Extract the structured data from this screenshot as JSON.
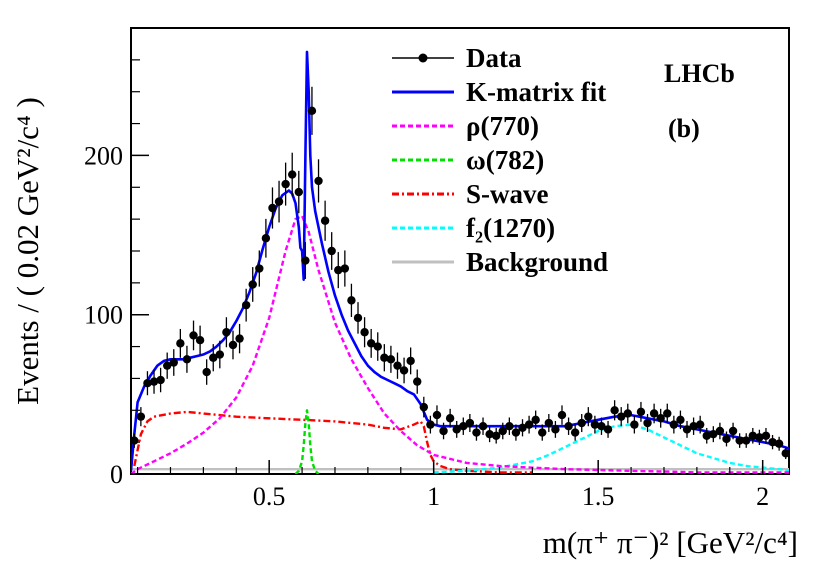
{
  "chart_data": {
    "type": "line",
    "xlabel": "m(π⁺ π⁻)² [GeV²/c⁴]",
    "ylabel": "Events / ( 0.02 GeV²/c⁴ )",
    "xlim": [
      0.08,
      2.08
    ],
    "ylim": [
      0,
      280
    ],
    "x_ticks": [
      0.5,
      1,
      1.5,
      2
    ],
    "x_tick_labels": [
      "0.5",
      "1",
      "1.5",
      "2"
    ],
    "y_ticks": [
      0,
      100,
      200
    ],
    "y_tick_labels": [
      "0",
      "100",
      "200"
    ],
    "annotations": [
      "LHCb",
      "(b)"
    ],
    "legend_position": "top-right",
    "legend": [
      {
        "label": "Data",
        "color": "#000000",
        "style": "marker-line"
      },
      {
        "label": "K-matrix fit",
        "color": "#0000ff",
        "style": "solid"
      },
      {
        "label": "ρ(770)",
        "color": "#ff00ff",
        "style": "dashed"
      },
      {
        "label": "ω(782)",
        "color": "#00e000",
        "style": "dashed"
      },
      {
        "label": "S-wave",
        "color": "#ff0000",
        "style": "dashdot"
      },
      {
        "label": "f₂(1270)",
        "color": "#00ffff",
        "style": "dashed"
      },
      {
        "label": "Background",
        "color": "#c0c0c0",
        "style": "solid"
      }
    ],
    "series": [
      {
        "name": "Data",
        "type": "points",
        "color": "#000000",
        "x": [
          0.09,
          0.11,
          0.13,
          0.15,
          0.17,
          0.19,
          0.21,
          0.23,
          0.25,
          0.27,
          0.29,
          0.31,
          0.33,
          0.35,
          0.37,
          0.39,
          0.41,
          0.43,
          0.45,
          0.47,
          0.49,
          0.51,
          0.53,
          0.55,
          0.57,
          0.59,
          0.61,
          0.63,
          0.65,
          0.67,
          0.69,
          0.71,
          0.73,
          0.75,
          0.77,
          0.79,
          0.81,
          0.83,
          0.85,
          0.87,
          0.89,
          0.91,
          0.93,
          0.95,
          0.97,
          0.99,
          1.01,
          1.03,
          1.05,
          1.07,
          1.09,
          1.11,
          1.13,
          1.15,
          1.17,
          1.19,
          1.21,
          1.23,
          1.25,
          1.27,
          1.29,
          1.31,
          1.33,
          1.35,
          1.37,
          1.39,
          1.41,
          1.43,
          1.45,
          1.47,
          1.49,
          1.51,
          1.53,
          1.55,
          1.57,
          1.59,
          1.61,
          1.63,
          1.65,
          1.67,
          1.69,
          1.71,
          1.73,
          1.75,
          1.77,
          1.79,
          1.81,
          1.83,
          1.85,
          1.87,
          1.89,
          1.91,
          1.93,
          1.95,
          1.97,
          1.99,
          2.01,
          2.03,
          2.05,
          2.07
        ],
        "y": [
          21,
          36,
          57,
          58,
          59,
          68,
          70,
          82,
          72,
          87,
          84,
          64,
          73,
          75,
          89,
          81,
          85,
          106,
          119,
          129,
          148,
          167,
          171,
          182,
          188,
          177,
          134,
          228,
          184,
          159,
          140,
          128,
          129,
          109,
          98,
          89,
          82,
          80,
          73,
          72,
          68,
          65,
          71,
          58,
          42,
          31,
          37,
          27,
          35,
          28,
          30,
          32,
          26,
          30,
          25,
          24,
          27,
          30,
          26,
          29,
          31,
          34,
          26,
          32,
          28,
          37,
          30,
          26,
          32,
          36,
          31,
          30,
          28,
          40,
          36,
          38,
          31,
          39,
          32,
          38,
          35,
          38,
          31,
          34,
          28,
          30,
          31,
          24,
          25,
          27,
          22,
          27,
          21,
          21,
          24,
          23,
          24,
          20,
          19,
          13
        ]
      },
      {
        "name": "K-matrix fit",
        "type": "curve",
        "color": "#0000ff",
        "x": [
          0.08,
          0.09,
          0.1,
          0.12,
          0.14,
          0.16,
          0.18,
          0.2,
          0.22,
          0.24,
          0.26,
          0.28,
          0.3,
          0.32,
          0.34,
          0.36,
          0.38,
          0.4,
          0.42,
          0.44,
          0.46,
          0.48,
          0.5,
          0.52,
          0.54,
          0.56,
          0.57,
          0.58,
          0.59,
          0.595,
          0.6,
          0.605,
          0.61,
          0.615,
          0.62,
          0.625,
          0.63,
          0.64,
          0.66,
          0.68,
          0.7,
          0.72,
          0.74,
          0.76,
          0.78,
          0.8,
          0.82,
          0.84,
          0.86,
          0.88,
          0.9,
          0.92,
          0.94,
          0.96,
          0.98,
          1.0,
          1.02,
          1.04,
          1.06,
          1.08,
          1.1,
          1.15,
          1.2,
          1.25,
          1.3,
          1.35,
          1.4,
          1.45,
          1.5,
          1.55,
          1.6,
          1.65,
          1.7,
          1.75,
          1.8,
          1.85,
          1.9,
          1.95,
          2.0,
          2.05,
          2.08
        ],
        "y": [
          2,
          25,
          45,
          55,
          62,
          68,
          71,
          72,
          72,
          72,
          73,
          74,
          75,
          77,
          80,
          84,
          89,
          96,
          104,
          114,
          126,
          141,
          155,
          167,
          175,
          178,
          176,
          170,
          155,
          142,
          140,
          122,
          200,
          265,
          240,
          200,
          180,
          165,
          145,
          127,
          112,
          100,
          90,
          82,
          74,
          68,
          64,
          61,
          59,
          57,
          55,
          52,
          50,
          44,
          34,
          31,
          30,
          30,
          30,
          30,
          30,
          30,
          30,
          30,
          30,
          30,
          30,
          32,
          34,
          36,
          37,
          35,
          33,
          30,
          28,
          26,
          24,
          22,
          20,
          18,
          16
        ]
      },
      {
        "name": "ρ(770)",
        "type": "curve",
        "color": "#ff00ff",
        "x": [
          0.08,
          0.1,
          0.15,
          0.2,
          0.25,
          0.3,
          0.35,
          0.4,
          0.45,
          0.5,
          0.55,
          0.58,
          0.6,
          0.62,
          0.65,
          0.7,
          0.75,
          0.8,
          0.85,
          0.9,
          0.95,
          1.0,
          1.1,
          1.2,
          1.4,
          1.6,
          1.8,
          2.0,
          2.08
        ],
        "y": [
          0,
          3,
          8,
          13,
          19,
          26,
          35,
          48,
          68,
          98,
          140,
          160,
          162,
          152,
          128,
          95,
          72,
          54,
          38,
          27,
          18,
          12,
          7,
          5,
          3,
          2,
          1,
          1,
          1
        ]
      },
      {
        "name": "ω(782)",
        "type": "curve",
        "color": "#00e000",
        "x": [
          0.58,
          0.59,
          0.6,
          0.605,
          0.61,
          0.615,
          0.62,
          0.625,
          0.63,
          0.64,
          0.65
        ],
        "y": [
          0,
          2,
          8,
          18,
          32,
          40,
          32,
          18,
          8,
          2,
          0
        ]
      },
      {
        "name": "S-wave",
        "type": "curve",
        "color": "#ff0000",
        "x": [
          0.09,
          0.11,
          0.13,
          0.15,
          0.2,
          0.25,
          0.3,
          0.4,
          0.5,
          0.6,
          0.7,
          0.8,
          0.85,
          0.9,
          0.94,
          0.96,
          0.97,
          0.98,
          0.99,
          1.0,
          1.02,
          1.05,
          1.1,
          1.2,
          1.3
        ],
        "y": [
          5,
          25,
          33,
          36,
          38,
          39,
          38,
          36,
          35,
          34,
          33,
          31,
          29,
          28,
          31,
          33,
          30,
          20,
          12,
          8,
          5,
          3,
          2,
          1,
          1
        ]
      },
      {
        "name": "f₂(1270)",
        "type": "curve",
        "color": "#00ffff",
        "x": [
          1.0,
          1.1,
          1.2,
          1.3,
          1.35,
          1.4,
          1.45,
          1.5,
          1.55,
          1.6,
          1.65,
          1.7,
          1.75,
          1.8,
          1.85,
          1.9,
          1.95,
          2.0,
          2.05,
          2.08
        ],
        "y": [
          1,
          2,
          4,
          8,
          12,
          17,
          22,
          27,
          30,
          31,
          28,
          23,
          18,
          13,
          10,
          7,
          5,
          4,
          3,
          2
        ]
      },
      {
        "name": "Background",
        "type": "curve",
        "color": "#c0c0c0",
        "x": [
          0.08,
          2.08
        ],
        "y": [
          3,
          3
        ]
      }
    ]
  }
}
